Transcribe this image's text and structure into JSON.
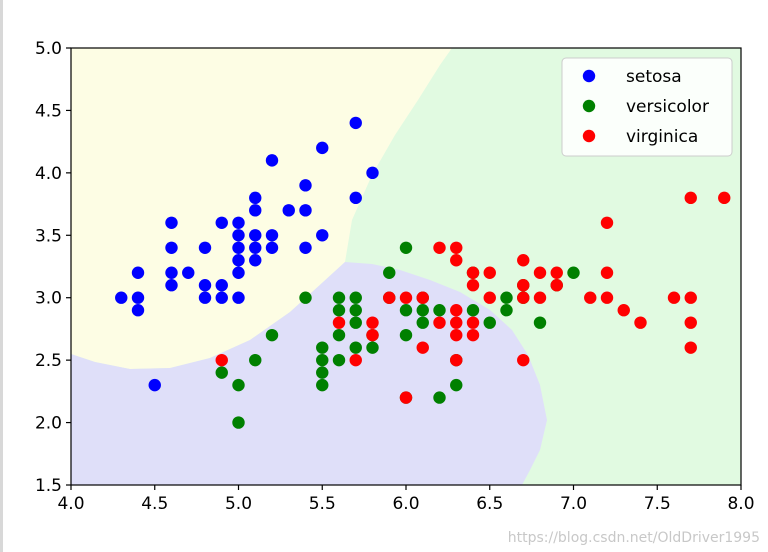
{
  "chart_data": {
    "type": "scatter",
    "title": "",
    "xlabel": "",
    "ylabel": "",
    "xlim": [
      4.0,
      8.0
    ],
    "ylim": [
      1.5,
      5.0
    ],
    "xticks": [
      "4.0",
      "4.5",
      "5.0",
      "5.5",
      "6.0",
      "6.5",
      "7.0",
      "7.5",
      "8.0"
    ],
    "yticks": [
      "1.5",
      "2.0",
      "2.5",
      "3.0",
      "3.5",
      "4.0",
      "4.5",
      "5.0"
    ],
    "grid": false,
    "legend_position": "top-right",
    "background_regions": [
      {
        "class": "setosa",
        "color": "#fdfde4"
      },
      {
        "class": "versicolor",
        "color": "#dfdff9"
      },
      {
        "class": "virginica",
        "color": "#e1fae1"
      }
    ],
    "series": [
      {
        "name": "setosa",
        "color": "#0000ff",
        "points": [
          [
            4.3,
            3.0
          ],
          [
            4.4,
            3.2
          ],
          [
            4.4,
            3.0
          ],
          [
            4.4,
            2.9
          ],
          [
            4.5,
            2.3
          ],
          [
            4.6,
            3.6
          ],
          [
            4.6,
            3.4
          ],
          [
            4.6,
            3.2
          ],
          [
            4.6,
            3.1
          ],
          [
            4.7,
            3.2
          ],
          [
            4.8,
            3.4
          ],
          [
            4.8,
            3.1
          ],
          [
            4.8,
            3.0
          ],
          [
            4.9,
            3.6
          ],
          [
            4.9,
            3.1
          ],
          [
            4.9,
            3.0
          ],
          [
            5.0,
            3.6
          ],
          [
            5.0,
            3.5
          ],
          [
            5.0,
            3.4
          ],
          [
            5.0,
            3.3
          ],
          [
            5.0,
            3.2
          ],
          [
            5.0,
            3.0
          ],
          [
            5.1,
            3.8
          ],
          [
            5.1,
            3.7
          ],
          [
            5.1,
            3.5
          ],
          [
            5.1,
            3.4
          ],
          [
            5.1,
            3.3
          ],
          [
            5.2,
            4.1
          ],
          [
            5.2,
            3.5
          ],
          [
            5.2,
            3.4
          ],
          [
            5.3,
            3.7
          ],
          [
            5.4,
            3.9
          ],
          [
            5.4,
            3.7
          ],
          [
            5.4,
            3.4
          ],
          [
            5.5,
            4.2
          ],
          [
            5.5,
            3.5
          ],
          [
            5.7,
            4.4
          ],
          [
            5.7,
            3.8
          ],
          [
            5.8,
            4.0
          ]
        ]
      },
      {
        "name": "versicolor",
        "color": "#008000",
        "points": [
          [
            4.9,
            2.4
          ],
          [
            5.0,
            2.3
          ],
          [
            5.0,
            2.0
          ],
          [
            5.1,
            2.5
          ],
          [
            5.2,
            2.7
          ],
          [
            5.4,
            3.0
          ],
          [
            5.5,
            2.6
          ],
          [
            5.5,
            2.5
          ],
          [
            5.5,
            2.4
          ],
          [
            5.5,
            2.3
          ],
          [
            5.6,
            3.0
          ],
          [
            5.6,
            2.9
          ],
          [
            5.6,
            2.7
          ],
          [
            5.6,
            2.5
          ],
          [
            5.7,
            3.0
          ],
          [
            5.7,
            2.9
          ],
          [
            5.7,
            2.8
          ],
          [
            5.7,
            2.6
          ],
          [
            5.8,
            2.7
          ],
          [
            5.8,
            2.6
          ],
          [
            5.9,
            3.2
          ],
          [
            5.9,
            3.0
          ],
          [
            6.0,
            3.4
          ],
          [
            6.0,
            2.9
          ],
          [
            6.0,
            2.7
          ],
          [
            6.0,
            2.2
          ],
          [
            6.1,
            3.0
          ],
          [
            6.1,
            2.9
          ],
          [
            6.1,
            2.8
          ],
          [
            6.2,
            2.9
          ],
          [
            6.2,
            2.2
          ],
          [
            6.3,
            2.5
          ],
          [
            6.3,
            2.3
          ],
          [
            6.4,
            3.2
          ],
          [
            6.4,
            2.9
          ],
          [
            6.5,
            2.8
          ],
          [
            6.6,
            3.0
          ],
          [
            6.6,
            2.9
          ],
          [
            6.7,
            3.1
          ],
          [
            6.7,
            3.0
          ],
          [
            6.8,
            2.8
          ],
          [
            6.9,
            3.1
          ],
          [
            7.0,
            3.2
          ]
        ]
      },
      {
        "name": "virginica",
        "color": "#ff0000",
        "points": [
          [
            4.9,
            2.5
          ],
          [
            5.6,
            2.8
          ],
          [
            5.7,
            2.5
          ],
          [
            5.8,
            2.8
          ],
          [
            5.8,
            2.7
          ],
          [
            5.9,
            3.0
          ],
          [
            6.0,
            3.0
          ],
          [
            6.0,
            2.2
          ],
          [
            6.1,
            3.0
          ],
          [
            6.1,
            2.6
          ],
          [
            6.2,
            3.4
          ],
          [
            6.2,
            2.8
          ],
          [
            6.3,
            3.4
          ],
          [
            6.3,
            3.3
          ],
          [
            6.3,
            2.9
          ],
          [
            6.3,
            2.8
          ],
          [
            6.3,
            2.7
          ],
          [
            6.3,
            2.5
          ],
          [
            6.4,
            3.2
          ],
          [
            6.4,
            3.1
          ],
          [
            6.4,
            2.8
          ],
          [
            6.4,
            2.7
          ],
          [
            6.5,
            3.2
          ],
          [
            6.5,
            3.0
          ],
          [
            6.7,
            3.3
          ],
          [
            6.7,
            3.1
          ],
          [
            6.7,
            3.0
          ],
          [
            6.7,
            2.5
          ],
          [
            6.8,
            3.2
          ],
          [
            6.8,
            3.0
          ],
          [
            6.9,
            3.2
          ],
          [
            6.9,
            3.1
          ],
          [
            7.1,
            3.0
          ],
          [
            7.2,
            3.6
          ],
          [
            7.2,
            3.2
          ],
          [
            7.2,
            3.0
          ],
          [
            7.3,
            2.9
          ],
          [
            7.4,
            2.8
          ],
          [
            7.6,
            3.0
          ],
          [
            7.7,
            3.8
          ],
          [
            7.7,
            3.0
          ],
          [
            7.7,
            2.8
          ],
          [
            7.7,
            2.6
          ],
          [
            7.9,
            3.8
          ]
        ]
      }
    ]
  },
  "watermark": "https://blog.csdn.net/OldDriver1995"
}
